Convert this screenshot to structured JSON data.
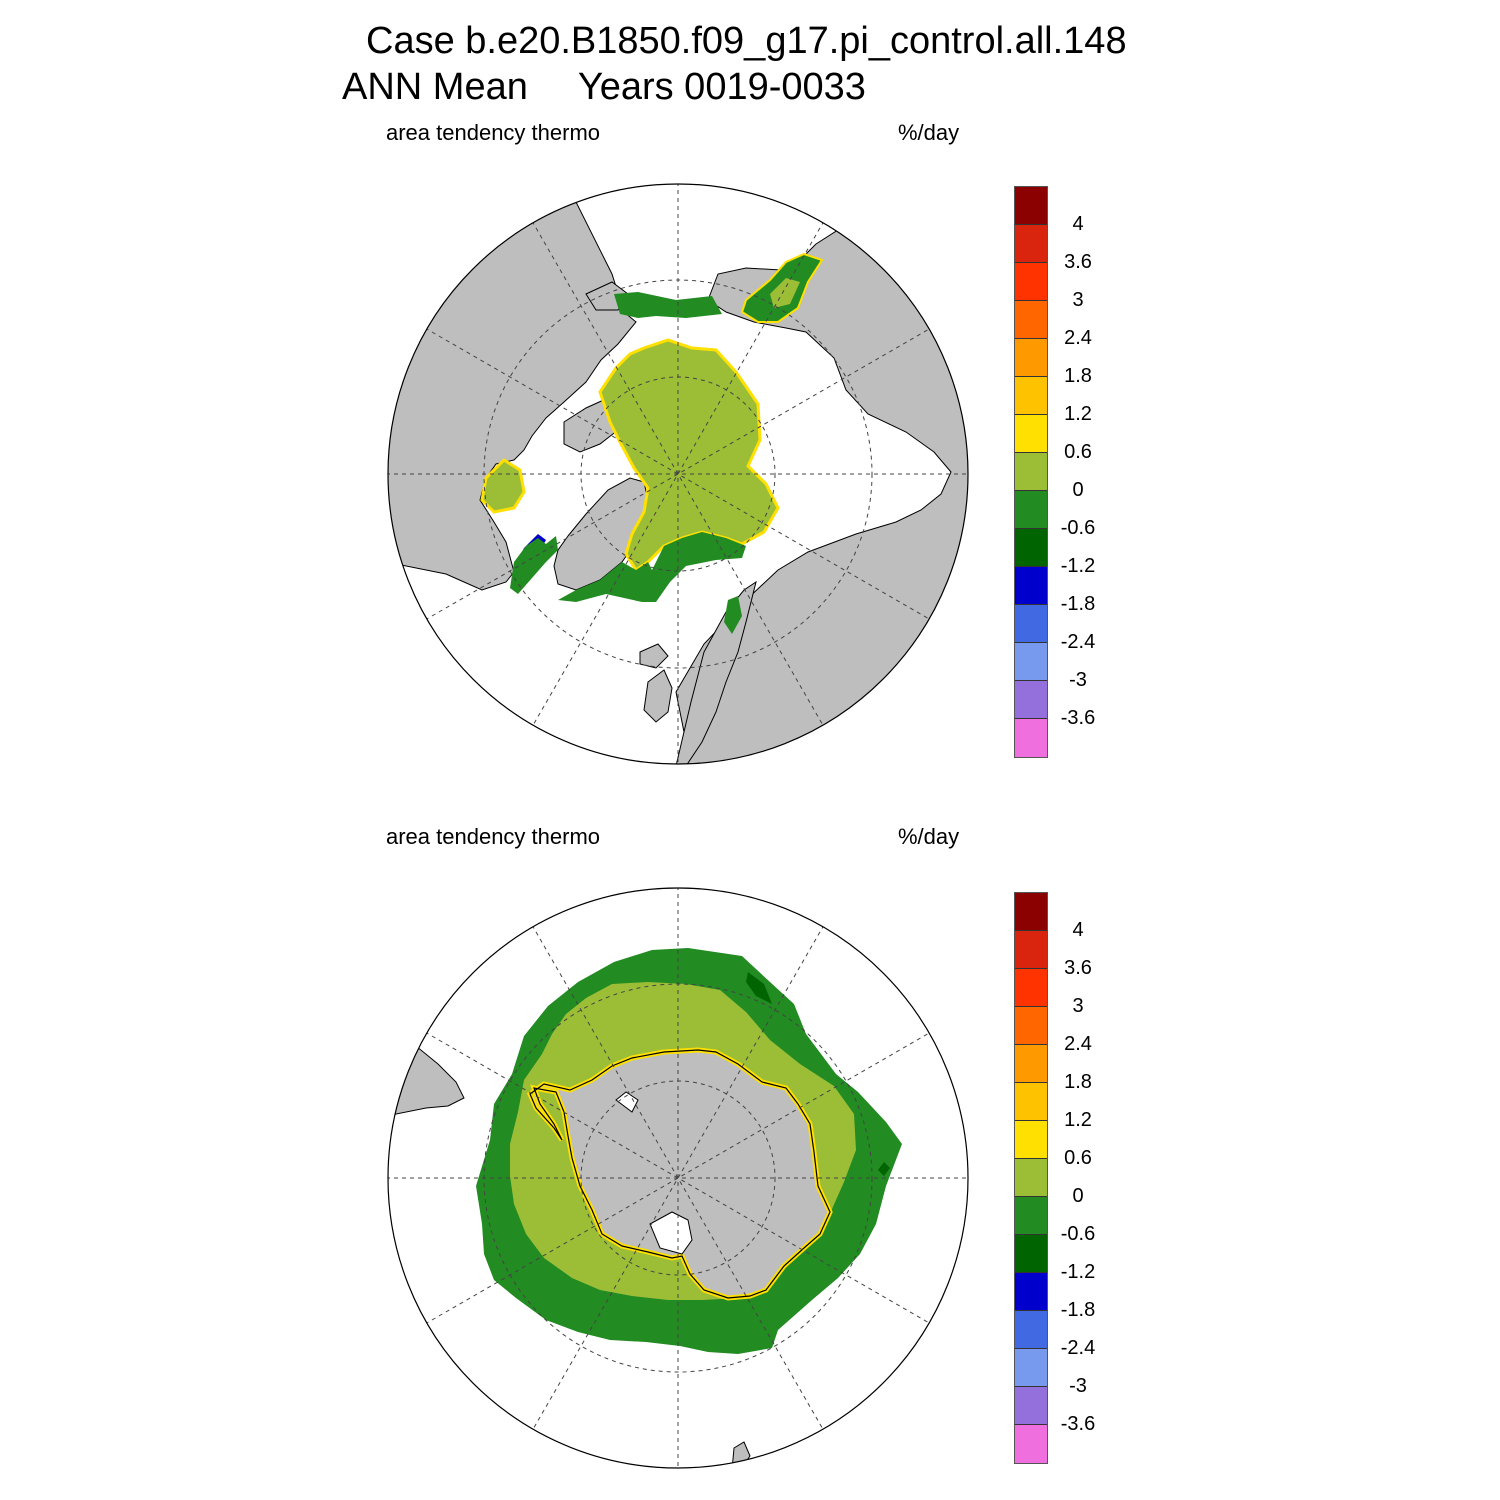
{
  "figure": {
    "case_line": "Case b.e20.B1850.f09_g17.pi_control.all.148",
    "period_label": "ANN Mean",
    "years_label": "Years 0019-0033"
  },
  "panels": [
    {
      "id": "north",
      "variable": "area tendency thermo",
      "units": "%/day"
    },
    {
      "id": "south",
      "variable": "area tendency thermo",
      "units": "%/day"
    }
  ],
  "colorbar": {
    "colors": [
      "#8b0000",
      "#d9240e",
      "#ff3300",
      "#ff6600",
      "#ff9900",
      "#ffc200",
      "#ffe000",
      "#9cbe37",
      "#228b22",
      "#006400",
      "#0000cd",
      "#4169e1",
      "#7799ee",
      "#9370db",
      "#ee6fdd"
    ],
    "tick_labels": [
      "4",
      "3.6",
      "3",
      "2.4",
      "1.8",
      "1.2",
      "0.6",
      "0",
      "-0.6",
      "-1.2",
      "-1.8",
      "-2.4",
      "-3",
      "-3.6"
    ]
  },
  "map_colors": {
    "land": "#bebebe",
    "ocean": "#ffffff",
    "grid": "#444444"
  }
}
